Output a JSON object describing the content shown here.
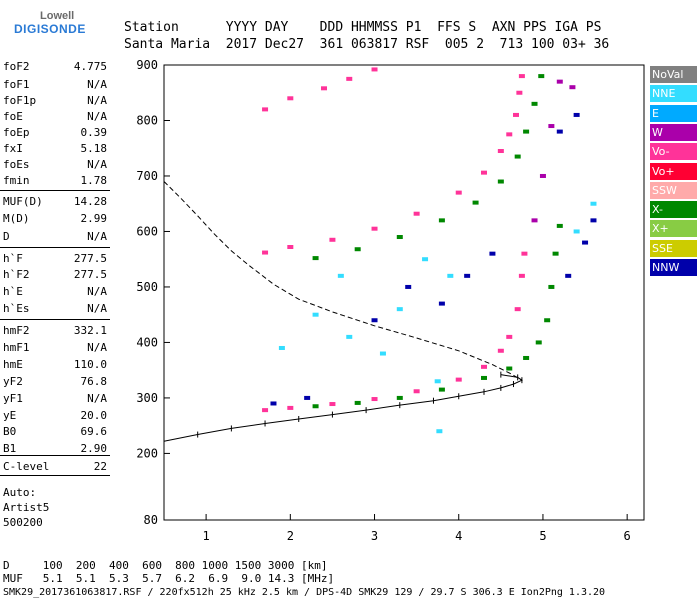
{
  "logo": {
    "top": "Lowell",
    "bottom": "DIGISONDE"
  },
  "header": {
    "labels_line": "Station      YYYY DAY    DDD HHMMSS P1  FFS S  AXN PPS IGA PS",
    "values_line": "Santa Maria  2017 Dec27  361 063817 RSF  005 2  713 100 03+ 36"
  },
  "params": [
    {
      "label": "foF2",
      "value": "4.775"
    },
    {
      "label": "foF1",
      "value": "N/A"
    },
    {
      "label": "foF1p",
      "value": "N/A"
    },
    {
      "label": "foE",
      "value": "N/A"
    },
    {
      "label": "foEp",
      "value": "0.39"
    },
    {
      "label": "fxI",
      "value": "5.18"
    },
    {
      "label": "foEs",
      "value": "N/A"
    },
    {
      "label": "fmin",
      "value": "1.78"
    },
    {
      "label": "MUF(D)",
      "value": "14.28"
    },
    {
      "label": "M(D)",
      "value": "2.99"
    },
    {
      "label": "D",
      "value": "N/A"
    },
    {
      "label": "h`F",
      "value": "277.5"
    },
    {
      "label": "h`F2",
      "value": "277.5"
    },
    {
      "label": "h`E",
      "value": "N/A"
    },
    {
      "label": "h`Es",
      "value": "N/A"
    },
    {
      "label": "hmF2",
      "value": "332.1"
    },
    {
      "label": "hmF1",
      "value": "N/A"
    },
    {
      "label": "hmE",
      "value": "110.0"
    },
    {
      "label": "yF2",
      "value": "76.8"
    },
    {
      "label": "yF1",
      "value": "N/A"
    },
    {
      "label": "yE",
      "value": "20.0"
    },
    {
      "label": "B0",
      "value": "69.6"
    },
    {
      "label": "B1",
      "value": "2.90"
    },
    {
      "label": "C-level",
      "value": "22"
    }
  ],
  "scaler": {
    "line1": "Auto:",
    "line2": "Artist5",
    "line3": "500200"
  },
  "dtable": {
    "d_line": "D     100  200  400  600  800 1000 1500 3000 [km]",
    "muf_line": "MUF   5.1  5.1  5.3  5.7  6.2  6.9  9.0 14.3 [MHz]"
  },
  "footer": "SMK29_2017361063817.RSF / 220fx512h 25 kHz 2.5 km / DPS-4D SMK29 129 / 29.7 S 306.3 E Ion2Png 1.3.20",
  "legend": [
    {
      "label": "NoVal",
      "color": "#808080"
    },
    {
      "label": "NNE",
      "color": "#33ddff"
    },
    {
      "label": "E",
      "color": "#00aaff"
    },
    {
      "label": "W",
      "color": "#aa00aa"
    },
    {
      "label": "Vo-",
      "color": "#ff3399"
    },
    {
      "label": "Vo+",
      "color": "#ff0033"
    },
    {
      "label": "SSW",
      "color": "#ffaaaa"
    },
    {
      "label": "X-",
      "color": "#008800"
    },
    {
      "label": "X+",
      "color": "#88cc44"
    },
    {
      "label": "SSE",
      "color": "#cccc00"
    },
    {
      "label": "NNW",
      "color": "#0000aa"
    }
  ],
  "chart_data": {
    "type": "scatter",
    "xlim": [
      0.5,
      6.2
    ],
    "ylim": [
      80,
      900
    ],
    "x_ticks": [
      1,
      2,
      3,
      4,
      5,
      6
    ],
    "y_ticks": [
      80,
      200,
      300,
      400,
      500,
      600,
      700,
      800,
      900
    ],
    "series": [
      {
        "name": "Vo-",
        "color": "#ff3399",
        "points": [
          [
            1.7,
            278
          ],
          [
            2.0,
            282
          ],
          [
            2.5,
            289
          ],
          [
            3.0,
            298
          ],
          [
            3.5,
            312
          ],
          [
            4.0,
            333
          ],
          [
            4.3,
            356
          ],
          [
            4.5,
            385
          ],
          [
            4.6,
            410
          ],
          [
            4.7,
            460
          ],
          [
            4.75,
            520
          ],
          [
            4.78,
            560
          ],
          [
            1.7,
            562
          ],
          [
            2.0,
            572
          ],
          [
            2.5,
            585
          ],
          [
            3.0,
            605
          ],
          [
            3.5,
            632
          ],
          [
            4.0,
            670
          ],
          [
            4.3,
            706
          ],
          [
            4.5,
            745
          ],
          [
            4.6,
            775
          ],
          [
            4.68,
            810
          ],
          [
            4.72,
            850
          ],
          [
            4.75,
            880
          ],
          [
            1.7,
            820
          ],
          [
            2.0,
            840
          ],
          [
            2.4,
            858
          ],
          [
            2.7,
            875
          ],
          [
            3.0,
            892
          ]
        ]
      },
      {
        "name": "X-",
        "color": "#008800",
        "points": [
          [
            2.3,
            285
          ],
          [
            2.8,
            291
          ],
          [
            3.3,
            300
          ],
          [
            3.8,
            315
          ],
          [
            4.3,
            336
          ],
          [
            4.6,
            353
          ],
          [
            4.8,
            372
          ],
          [
            4.95,
            400
          ],
          [
            5.05,
            440
          ],
          [
            5.1,
            500
          ],
          [
            5.15,
            560
          ],
          [
            5.2,
            610
          ],
          [
            2.3,
            552
          ],
          [
            2.8,
            568
          ],
          [
            3.3,
            590
          ],
          [
            3.8,
            620
          ],
          [
            4.2,
            652
          ],
          [
            4.5,
            690
          ],
          [
            4.7,
            735
          ],
          [
            4.8,
            780
          ],
          [
            4.9,
            830
          ],
          [
            4.98,
            880
          ]
        ]
      },
      {
        "name": "NNW",
        "color": "#0000aa",
        "points": [
          [
            1.8,
            290
          ],
          [
            2.2,
            300
          ],
          [
            3.0,
            440
          ],
          [
            3.4,
            500
          ],
          [
            3.8,
            470
          ],
          [
            4.1,
            520
          ],
          [
            4.4,
            560
          ],
          [
            5.3,
            520
          ],
          [
            5.5,
            580
          ],
          [
            5.6,
            620
          ],
          [
            5.2,
            780
          ],
          [
            5.4,
            810
          ]
        ]
      },
      {
        "name": "NNE",
        "color": "#33ddff",
        "points": [
          [
            1.9,
            390
          ],
          [
            2.3,
            450
          ],
          [
            2.6,
            520
          ],
          [
            2.7,
            410
          ],
          [
            3.1,
            380
          ],
          [
            3.3,
            460
          ],
          [
            3.6,
            550
          ],
          [
            3.9,
            520
          ],
          [
            5.4,
            600
          ],
          [
            5.6,
            650
          ],
          [
            3.75,
            330
          ],
          [
            3.77,
            240
          ]
        ]
      },
      {
        "name": "W",
        "color": "#aa00aa",
        "points": [
          [
            4.9,
            620
          ],
          [
            5.0,
            700
          ],
          [
            5.1,
            790
          ],
          [
            5.2,
            870
          ],
          [
            5.35,
            860
          ]
        ]
      }
    ],
    "model_profile": [
      [
        0.5,
        222
      ],
      [
        0.9,
        234
      ],
      [
        1.3,
        245
      ],
      [
        1.7,
        254
      ],
      [
        2.1,
        262
      ],
      [
        2.5,
        270
      ],
      [
        2.9,
        278
      ],
      [
        3.3,
        287
      ],
      [
        3.7,
        295
      ],
      [
        4.0,
        303
      ],
      [
        4.3,
        311
      ],
      [
        4.5,
        318
      ],
      [
        4.65,
        325
      ],
      [
        4.75,
        332
      ],
      [
        4.7,
        337
      ],
      [
        4.5,
        342
      ]
    ],
    "muf_curve": [
      [
        0.5,
        690
      ],
      [
        0.7,
        660
      ],
      [
        0.9,
        628
      ],
      [
        1.1,
        595
      ],
      [
        1.3,
        565
      ],
      [
        1.5,
        540
      ],
      [
        1.8,
        505
      ],
      [
        2.1,
        478
      ],
      [
        2.5,
        455
      ],
      [
        3.0,
        430
      ],
      [
        3.5,
        408
      ],
      [
        4.0,
        385
      ],
      [
        4.4,
        360
      ],
      [
        4.6,
        345
      ],
      [
        4.75,
        332
      ]
    ]
  }
}
